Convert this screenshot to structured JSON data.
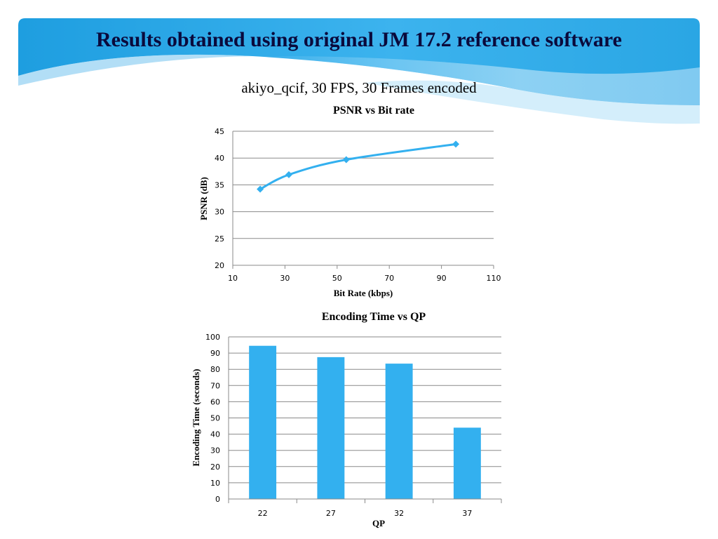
{
  "slide": {
    "title": "Results obtained using original JM 17.2 reference software",
    "subtitle": "akiyo_qcif, 30 FPS, 30 Frames encoded"
  },
  "colors": {
    "header_blue": "#2aa6e4",
    "header_light": "#8fd0f3",
    "series_blue": "#33b0ef",
    "gridline": "#8a8a8a",
    "title_text": "#0a0a3c"
  },
  "chart_data": [
    {
      "type": "line",
      "title": "PSNR vs Bit rate",
      "xlabel": "Bit Rate (kbps)",
      "ylabel": "PSNR (dB)",
      "xlim": [
        10,
        110
      ],
      "ylim": [
        20,
        45
      ],
      "xticks": [
        "10",
        "30",
        "50",
        "70",
        "90",
        "110"
      ],
      "yticks": [
        "20",
        "25",
        "30",
        "35",
        "40",
        "45"
      ],
      "grid": true,
      "legend": "none",
      "series": [
        {
          "x": [
            20.5,
            31.5,
            53.5,
            95.5
          ],
          "y": [
            34.2,
            36.9,
            39.7,
            42.6
          ]
        }
      ]
    },
    {
      "type": "bar",
      "title": "Encoding Time vs QP",
      "xlabel": "QP",
      "ylabel": "Encoding Time (seconds)",
      "ylim": [
        0,
        100
      ],
      "yticks": [
        "0",
        "10",
        "20",
        "30",
        "40",
        "50",
        "60",
        "70",
        "80",
        "90",
        "100"
      ],
      "grid": true,
      "legend": "none",
      "categories": [
        "22",
        "27",
        "32",
        "37"
      ],
      "values": [
        94.5,
        87.5,
        83.5,
        44
      ]
    }
  ]
}
